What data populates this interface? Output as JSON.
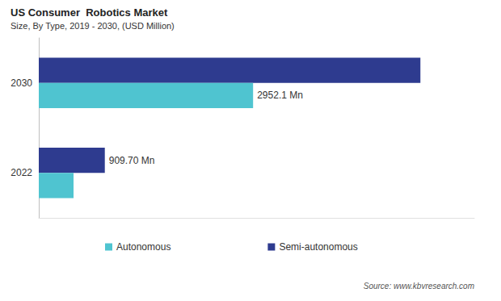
{
  "chart_data": {
    "type": "bar",
    "orientation": "horizontal",
    "title": "US Consumer  Robotics Market",
    "subtitle": "Size, By Type, 2019 - 2030, (USD Million)",
    "annotations": [
      "Source: www.kbvresearch.com"
    ],
    "categories": [
      "2022",
      "2030"
    ],
    "series": [
      {
        "name": "Autonomous",
        "color": "#4fc4d0",
        "values": [
          479,
          2952.1
        ],
        "value_labels": [
          null,
          "2952.1 Mn"
        ]
      },
      {
        "name": "Semi-autonomous",
        "color": "#2e3b8f",
        "values": [
          909.7,
          5257
        ],
        "value_labels": [
          "909.70 Mn",
          null
        ]
      }
    ],
    "xlim": [
      0,
      6000
    ],
    "grid": false,
    "legend": "bottom",
    "data_labels": true,
    "tick_labels": "y"
  }
}
